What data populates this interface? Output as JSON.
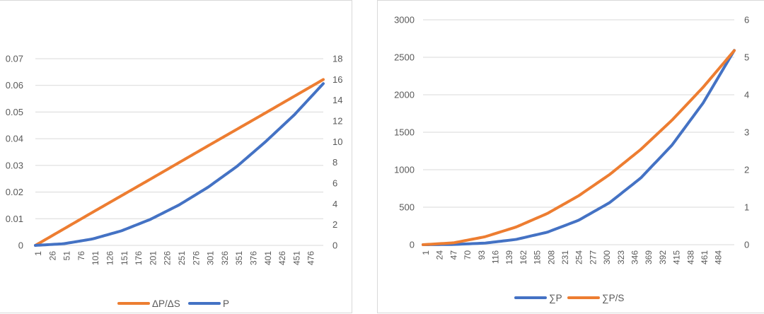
{
  "colors": {
    "orange": "#ED7D31",
    "blue": "#4472C4",
    "grid": "#d9d9d9",
    "text": "#595959"
  },
  "chart_data": [
    {
      "type": "line",
      "title": "",
      "grid": true,
      "legend_placement": "bottom",
      "x_tick_labels": [
        "1",
        "26",
        "51",
        "76",
        "101",
        "126",
        "151",
        "176",
        "201",
        "226",
        "251",
        "276",
        "301",
        "326",
        "351",
        "376",
        "401",
        "426",
        "451",
        "476"
      ],
      "x_range": [
        1,
        500
      ],
      "y_left": {
        "range": [
          0,
          0.07
        ],
        "ticks": [
          "0",
          "0.01",
          "0.02",
          "0.03",
          "0.04",
          "0.05",
          "0.06",
          "0.07"
        ]
      },
      "y_right": {
        "range": [
          0,
          18
        ],
        "ticks": [
          "0",
          "2",
          "4",
          "6",
          "8",
          "10",
          "12",
          "14",
          "16",
          "18"
        ]
      },
      "series": [
        {
          "name": "ΔP/ΔS",
          "axis": "left",
          "color": "#ED7D31",
          "x": [
            1,
            100,
            200,
            300,
            400,
            500
          ],
          "y": [
            0.0,
            0.0124,
            0.0248,
            0.0373,
            0.0497,
            0.0622
          ]
        },
        {
          "name": "P",
          "axis": "right",
          "color": "#4472C4",
          "x": [
            1,
            50,
            100,
            150,
            200,
            250,
            300,
            350,
            400,
            450,
            500
          ],
          "y": [
            0.0,
            0.16,
            0.62,
            1.4,
            2.5,
            3.9,
            5.6,
            7.6,
            10.0,
            12.6,
            15.6
          ]
        }
      ]
    },
    {
      "type": "line",
      "title": "",
      "grid": true,
      "legend_placement": "bottom",
      "x_tick_labels": [
        "1",
        "24",
        "47",
        "70",
        "93",
        "116",
        "139",
        "162",
        "185",
        "208",
        "231",
        "254",
        "277",
        "300",
        "323",
        "346",
        "369",
        "392",
        "415",
        "438",
        "461",
        "484"
      ],
      "x_range": [
        1,
        500
      ],
      "y_left": {
        "range": [
          0,
          3000
        ],
        "ticks": [
          "0",
          "500",
          "1000",
          "1500",
          "2000",
          "2500",
          "3000"
        ]
      },
      "y_right": {
        "range": [
          0,
          6
        ],
        "ticks": [
          "0",
          "1",
          "2",
          "3",
          "4",
          "5",
          "6"
        ]
      },
      "series": [
        {
          "name": "∑P",
          "axis": "left",
          "color": "#4472C4",
          "x": [
            1,
            50,
            100,
            150,
            200,
            250,
            300,
            350,
            400,
            450,
            500
          ],
          "y": [
            0,
            3,
            21,
            70,
            166,
            324,
            560,
            889,
            1327,
            1890,
            2592
          ]
        },
        {
          "name": "∑P/S",
          "axis": "right",
          "color": "#ED7D31",
          "x": [
            1,
            50,
            100,
            150,
            200,
            250,
            300,
            350,
            400,
            450,
            500
          ],
          "y": [
            0,
            0.05,
            0.21,
            0.47,
            0.83,
            1.3,
            1.87,
            2.54,
            3.32,
            4.2,
            5.18
          ]
        }
      ]
    }
  ]
}
